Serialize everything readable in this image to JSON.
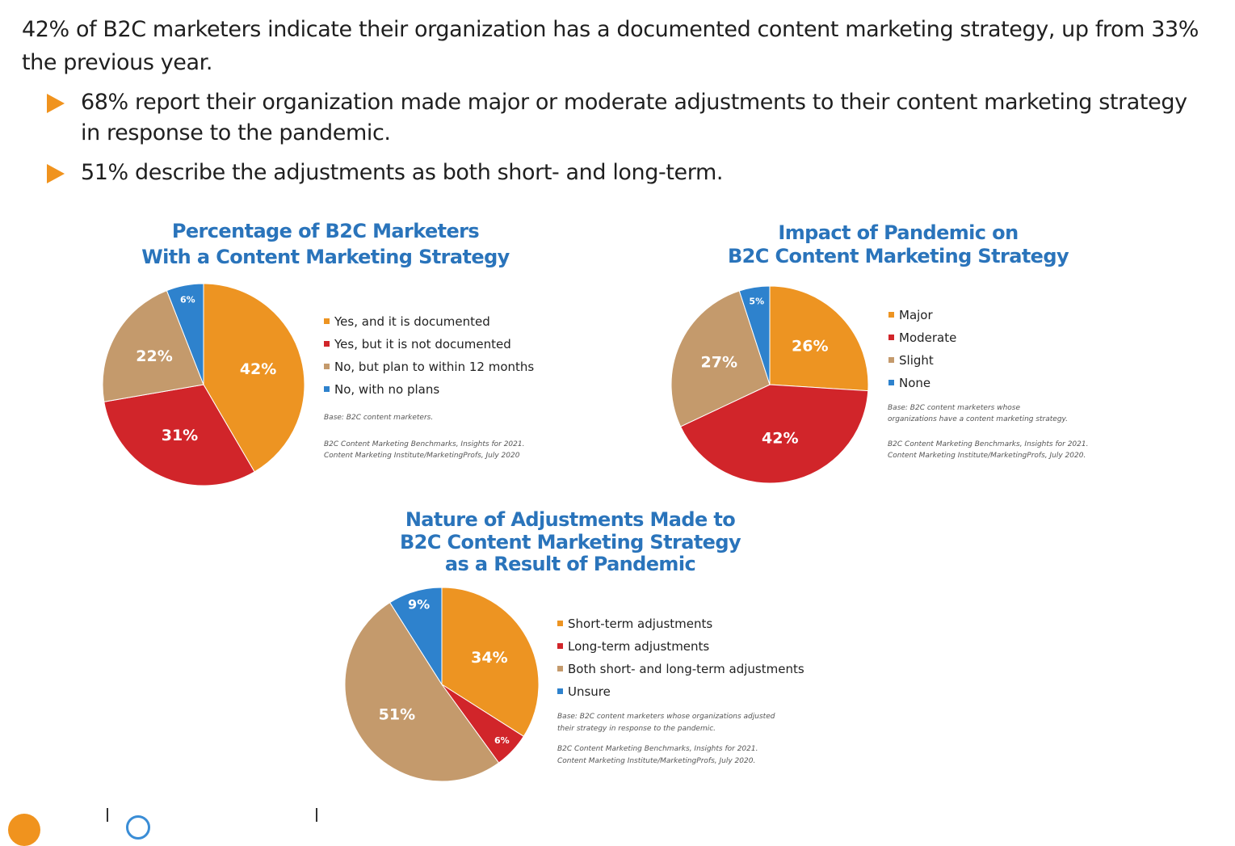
{
  "intro": "42% of B2C marketers indicate their organization has a documented content marketing strategy, up from 33% the previous year.",
  "bullets": [
    "68% report their organization made major or moderate adjustments to their content marketing strategy in response to the pandemic.",
    "51% describe the adjustments as both short- and long-term."
  ],
  "colors": {
    "orange": "#ed9422",
    "red": "#d1252a",
    "tan": "#c49a6c",
    "blue": "#2e82cd",
    "title": "#2a74bb",
    "bullet": "#f0931e"
  },
  "icons": {
    "bullet": "orange-triangle-arrow-icon"
  },
  "chart_data": [
    {
      "type": "pie",
      "title_lines": [
        "Percentage of B2C Marketers",
        "With a Content Marketing Strategy"
      ],
      "categories": [
        "Yes, and it is documented",
        "Yes, but it is not documented",
        "No, but plan to within 12 months",
        "No, with no plans"
      ],
      "values": [
        42,
        31,
        22,
        6
      ],
      "labels": [
        "42%",
        "31%",
        "22%",
        "6%"
      ],
      "notes": [
        "Base: B2C content marketers.",
        "B2C Content Marketing Benchmarks, Insights for 2021.",
        "Content Marketing Institute/MarketingProfs, July 2020"
      ]
    },
    {
      "type": "pie",
      "title_lines": [
        "Impact of Pandemic on",
        "B2C Content Marketing Strategy"
      ],
      "categories": [
        "Major",
        "Moderate",
        "Slight",
        "None"
      ],
      "values": [
        26,
        42,
        27,
        5
      ],
      "labels": [
        "26%",
        "42%",
        "27%",
        "5%"
      ],
      "notes": [
        "Base: B2C content marketers whose",
        "organizations have a content marketing strategy.",
        "B2C Content Marketing Benchmarks, Insights for 2021.",
        "Content Marketing Institute/MarketingProfs, July 2020."
      ]
    },
    {
      "type": "pie",
      "title_lines": [
        "Nature of Adjustments Made to",
        "B2C Content Marketing Strategy",
        "as a Result of Pandemic"
      ],
      "categories": [
        "Short-term adjustments",
        "Long-term adjustments",
        "Both short- and long-term adjustments",
        "Unsure"
      ],
      "values": [
        34,
        6,
        51,
        9
      ],
      "labels": [
        "34%",
        "6%",
        "51%",
        "9%"
      ],
      "notes": [
        "Base: B2C content marketers whose organizations adjusted",
        "their strategy in response to the pandemic.",
        "B2C Content Marketing Benchmarks, Insights for 2021.",
        "Content Marketing Institute/MarketingProfs, July 2020."
      ]
    }
  ]
}
